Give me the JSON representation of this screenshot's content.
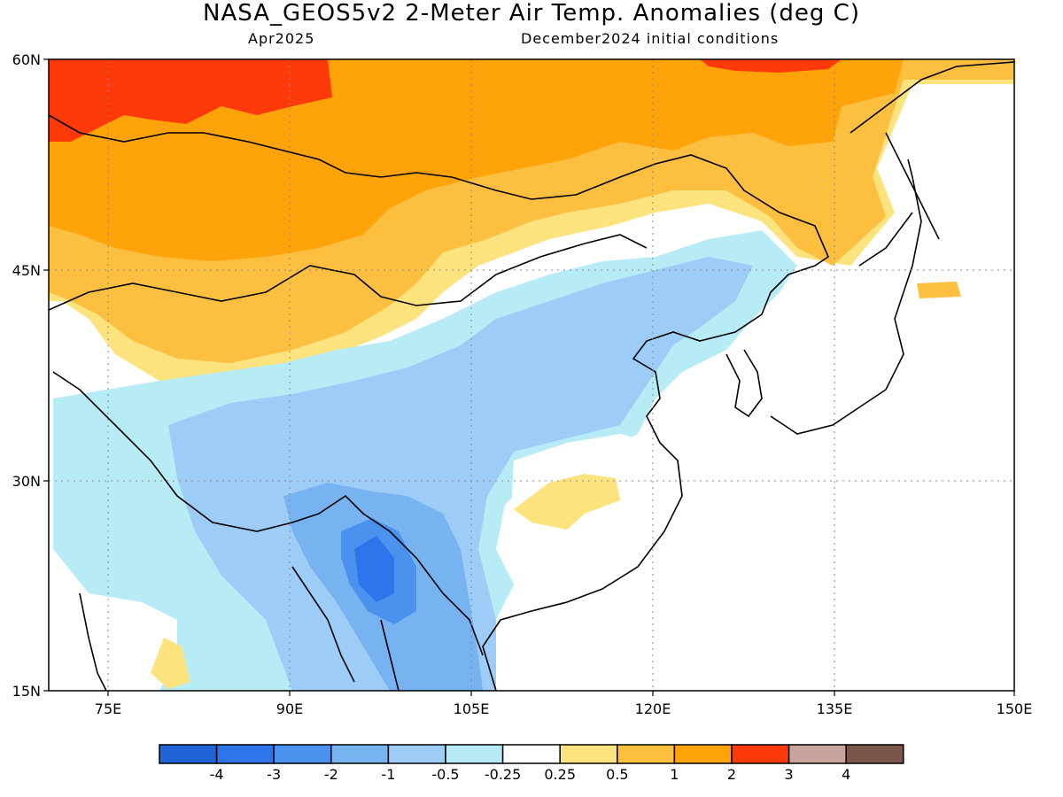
{
  "header": {
    "title": "NASA_GEOS5v2 2-Meter Air Temp. Anomalies (deg C)",
    "subtitle_left": "Apr2025",
    "subtitle_right": "December2024 initial conditions"
  },
  "map": {
    "lat_labels": [
      "60N",
      "45N",
      "30N",
      "15N"
    ],
    "lon_labels": [
      "75E",
      "90E",
      "105E",
      "120E",
      "135E",
      "150E"
    ],
    "extent": {
      "lon_min": 70,
      "lon_max": 150,
      "lat_min": 15,
      "lat_max": 60
    }
  },
  "colorbar": {
    "colors": [
      "#1f63d6",
      "#2e74ea",
      "#4a92ee",
      "#78b3f1",
      "#9dcdf6",
      "#b7ecf6",
      "#ffffff",
      "#fde37d",
      "#fdbf40",
      "#fea30a",
      "#fe3a0a",
      "#c9a49c",
      "#7a554a"
    ],
    "labels": [
      "-4",
      "-3",
      "-2",
      "-1",
      "-0.5",
      "-0.25",
      "0.25",
      "0.5",
      "1",
      "2",
      "3",
      "4"
    ]
  }
}
